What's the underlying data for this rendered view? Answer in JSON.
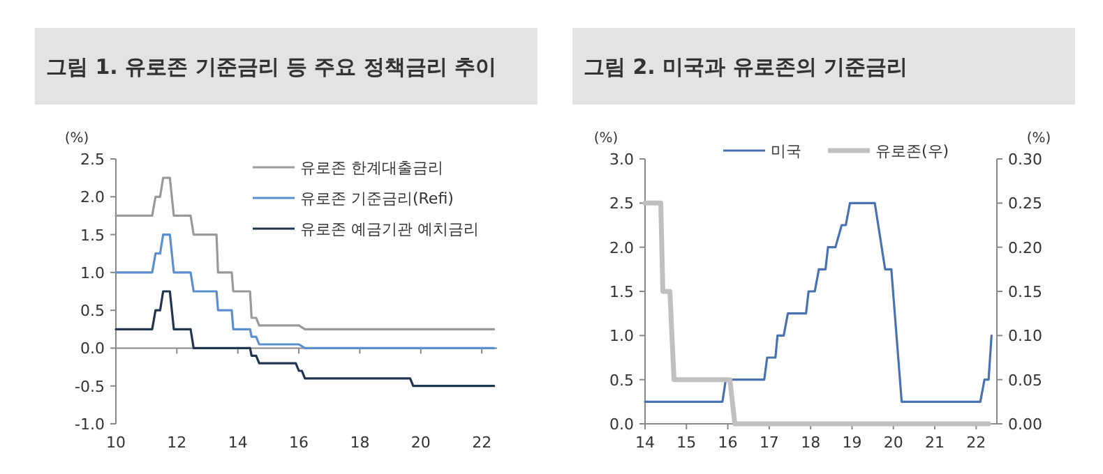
{
  "chart_data": [
    {
      "type": "line",
      "title": "그림 1.  유로존 기준금리 등 주요 정책금리 추이",
      "ylabel": "(%)",
      "legend": "top right",
      "xlim": [
        10,
        22.5
      ],
      "xticks": [
        10,
        12,
        14,
        16,
        18,
        20,
        22
      ],
      "ylim": [
        -1.0,
        2.5
      ],
      "yticks": [
        {
          "value": 2.5,
          "label": "2.5"
        },
        {
          "value": 2.0,
          "label": "2.0"
        },
        {
          "value": 1.5,
          "label": "1.5"
        },
        {
          "value": 1.0,
          "label": "1.0"
        },
        {
          "value": 0.5,
          "label": "0.5"
        },
        {
          "value": 0,
          "label": "0.0"
        },
        {
          "value": -0.5,
          "label": "-0.5"
        },
        {
          "value": -1.0,
          "label": "-1.0"
        }
      ],
      "series": [
        {
          "name": "유로존 한계대출금리",
          "color": "#999999",
          "x": [
            10,
            11.19,
            11.3,
            11.45,
            11.55,
            11.77,
            11.9,
            12.45,
            12.55,
            13.3,
            13.35,
            13.8,
            13.85,
            14.4,
            14.45,
            14.6,
            14.7,
            16.0,
            16.2,
            22.4
          ],
          "values": [
            1.75,
            1.75,
            2.0,
            2.0,
            2.25,
            2.25,
            1.75,
            1.75,
            1.5,
            1.5,
            1.0,
            1.0,
            0.75,
            0.75,
            0.4,
            0.4,
            0.3,
            0.3,
            0.25,
            0.25
          ]
        },
        {
          "name": "유로존 기준금리(Refi)",
          "color": "#5b8fd0",
          "x": [
            10,
            11.19,
            11.3,
            11.45,
            11.55,
            11.77,
            11.9,
            12.45,
            12.55,
            13.3,
            13.35,
            13.8,
            13.85,
            14.4,
            14.45,
            14.6,
            14.7,
            16.0,
            16.2,
            22.4
          ],
          "values": [
            1.0,
            1.0,
            1.25,
            1.25,
            1.5,
            1.5,
            1.0,
            1.0,
            0.75,
            0.75,
            0.5,
            0.5,
            0.25,
            0.25,
            0.15,
            0.15,
            0.05,
            0.05,
            0,
            0
          ]
        },
        {
          "name": "유로존 예금기관 예치금리",
          "color": "#1f3550",
          "x": [
            10,
            11.19,
            11.3,
            11.45,
            11.55,
            11.77,
            11.9,
            12.45,
            12.55,
            14.4,
            14.45,
            14.6,
            14.7,
            15.9,
            16.0,
            16.1,
            16.2,
            19.65,
            19.75,
            22.4
          ],
          "values": [
            0.25,
            0.25,
            0.5,
            0.5,
            0.75,
            0.75,
            0.25,
            0.25,
            0,
            0,
            -0.1,
            -0.1,
            -0.2,
            -0.2,
            -0.3,
            -0.3,
            -0.4,
            -0.4,
            -0.5,
            -0.5
          ]
        }
      ]
    },
    {
      "type": "line",
      "title": "그림 2.  미국과 유로존의 기준금리",
      "ylabel": "(%)",
      "y2label": "(%)",
      "legend": "top",
      "xlim": [
        14,
        22.5
      ],
      "xticks": [
        14,
        15,
        16,
        17,
        18,
        19,
        20,
        21,
        22
      ],
      "ylim": [
        0,
        3.0
      ],
      "yticks": [
        {
          "value": 3.0,
          "label": "3.0"
        },
        {
          "value": 2.5,
          "label": "2.5"
        },
        {
          "value": 2.0,
          "label": "2.0"
        },
        {
          "value": 1.5,
          "label": "1.5"
        },
        {
          "value": 1.0,
          "label": "1.0"
        },
        {
          "value": 0.5,
          "label": "0.5"
        },
        {
          "value": 0,
          "label": "0.0"
        }
      ],
      "y2lim": [
        0,
        0.3
      ],
      "y2ticks": [
        {
          "value": 0.3,
          "label": "0.30"
        },
        {
          "value": 0.25,
          "label": "0.25"
        },
        {
          "value": 0.2,
          "label": "0.20"
        },
        {
          "value": 0.15,
          "label": "0.15"
        },
        {
          "value": 0.1,
          "label": "0.10"
        },
        {
          "value": 0.05,
          "label": "0.05"
        },
        {
          "value": 0,
          "label": "0.00"
        }
      ],
      "series": [
        {
          "name": "미국",
          "color": "#4a72b0",
          "x": [
            14,
            15.87,
            15.95,
            16.88,
            16.95,
            17.15,
            17.2,
            17.35,
            17.45,
            17.89,
            17.95,
            18.1,
            18.2,
            18.36,
            18.42,
            18.6,
            18.75,
            18.85,
            18.95,
            19.55,
            19.8,
            19.95,
            20.2,
            22.1,
            22.2,
            22.3,
            22.37
          ],
          "values": [
            0.25,
            0.25,
            0.5,
            0.5,
            0.75,
            0.75,
            1.0,
            1.0,
            1.25,
            1.25,
            1.5,
            1.5,
            1.75,
            1.75,
            2.0,
            2.0,
            2.25,
            2.25,
            2.5,
            2.5,
            1.75,
            1.75,
            0.25,
            0.25,
            0.5,
            0.5,
            1.0
          ]
        },
        {
          "name": "유로존(우)",
          "color": "#c0c0c0",
          "axis": "y2",
          "x": [
            14,
            14.38,
            14.43,
            14.6,
            14.7,
            16.05,
            16.17,
            22.3
          ],
          "values": [
            0.25,
            0.25,
            0.15,
            0.15,
            0.05,
            0.05,
            0,
            0
          ]
        }
      ]
    }
  ]
}
